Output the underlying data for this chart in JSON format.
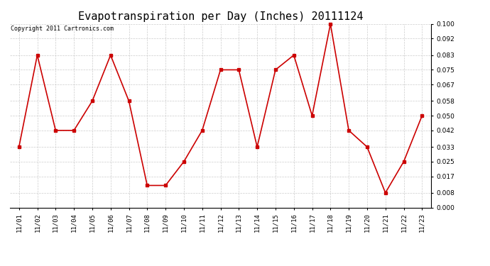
{
  "title": "Evapotranspiration per Day (Inches) 20111124",
  "copyright": "Copyright 2011 Cartronics.com",
  "labels": [
    "11/01",
    "11/02",
    "11/03",
    "11/04",
    "11/05",
    "11/06",
    "11/07",
    "11/08",
    "11/09",
    "11/10",
    "11/11",
    "11/12",
    "11/13",
    "11/14",
    "11/15",
    "11/16",
    "11/17",
    "11/18",
    "11/19",
    "11/20",
    "11/21",
    "11/22",
    "11/23"
  ],
  "values": [
    0.033,
    0.083,
    0.042,
    0.042,
    0.058,
    0.083,
    0.058,
    0.012,
    0.012,
    0.025,
    0.042,
    0.075,
    0.075,
    0.033,
    0.075,
    0.083,
    0.05,
    0.1,
    0.042,
    0.033,
    0.008,
    0.025,
    0.05
  ],
  "line_color": "#cc0000",
  "marker": "s",
  "markersize": 2.5,
  "linewidth": 1.2,
  "ylim": [
    0.0,
    0.1
  ],
  "yticks": [
    0.0,
    0.008,
    0.017,
    0.025,
    0.033,
    0.042,
    0.05,
    0.058,
    0.067,
    0.075,
    0.083,
    0.092,
    0.1
  ],
  "bg_color": "#ffffff",
  "grid_color": "#cccccc",
  "title_fontsize": 11,
  "copyright_fontsize": 6,
  "tick_fontsize": 6.5
}
